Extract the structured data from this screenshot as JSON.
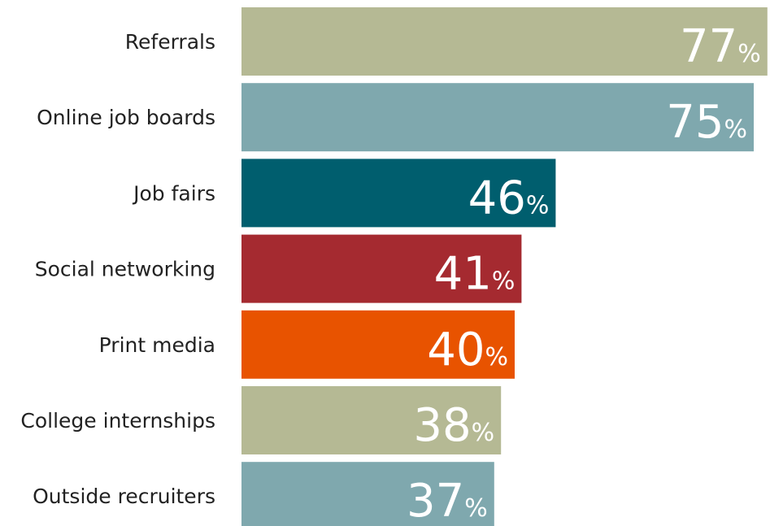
{
  "chart_data": {
    "type": "bar",
    "orientation": "horizontal",
    "categories": [
      "Referrals",
      "Online job boards",
      "Job fairs",
      "Social networking",
      "Print media",
      "College internships",
      "Outside recruiters"
    ],
    "values": [
      77,
      75,
      46,
      41,
      40,
      38,
      37
    ],
    "value_labels": [
      "77%",
      "75%",
      "46%",
      "41%",
      "40%",
      "38%",
      "37%"
    ],
    "colors": [
      "#b5b994",
      "#7fa8ae",
      "#005e6e",
      "#a52a30",
      "#e85300",
      "#b5b994",
      "#7fa8ae"
    ]
  }
}
